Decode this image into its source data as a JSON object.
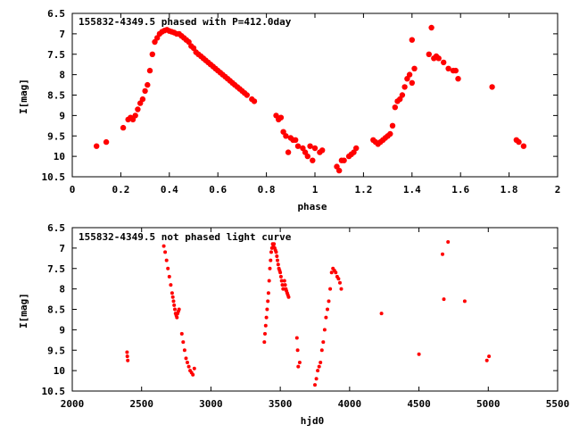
{
  "chart_data": [
    {
      "type": "scatter",
      "title": "155832-4349.5 phased with P=412.0day",
      "xlabel": "phase",
      "ylabel": "I[mag]",
      "xlim": [
        0,
        2
      ],
      "ylim": [
        10.5,
        6.5
      ],
      "y_inverted": true,
      "grid": false,
      "xticks": [
        "0",
        "0.2",
        "0.4",
        "0.6",
        "0.8",
        "1",
        "1.2",
        "1.4",
        "1.6",
        "1.8",
        "2"
      ],
      "yticks": [
        "6.5",
        "7",
        "7.5",
        "8",
        "8.5",
        "9",
        "9.5",
        "10",
        "10.5"
      ],
      "series": [
        {
          "color": "#ff0000",
          "marker": "filled-circle",
          "x": [
            0.1,
            0.14,
            0.21,
            0.23,
            0.24,
            0.25,
            0.26,
            0.27,
            0.28,
            0.29,
            0.3,
            0.31,
            0.32,
            0.33,
            0.34,
            0.35,
            0.36,
            0.37,
            0.38,
            0.39,
            0.4,
            0.41,
            0.42,
            0.43,
            0.44,
            0.45,
            0.46,
            0.47,
            0.48,
            0.49,
            0.5,
            0.51,
            0.52,
            0.53,
            0.54,
            0.55,
            0.56,
            0.57,
            0.58,
            0.59,
            0.6,
            0.61,
            0.62,
            0.63,
            0.64,
            0.65,
            0.66,
            0.67,
            0.68,
            0.69,
            0.7,
            0.71,
            0.72,
            0.74,
            0.75,
            0.84,
            0.85,
            0.86,
            0.87,
            0.88,
            0.89,
            0.9,
            0.91,
            0.92,
            0.93,
            0.95,
            0.96,
            0.97,
            0.98,
            0.99,
            1.0,
            1.02,
            1.03,
            1.09,
            1.1,
            1.11,
            1.12,
            1.14,
            1.15,
            1.16,
            1.17,
            1.24,
            1.25,
            1.26,
            1.27,
            1.28,
            1.29,
            1.3,
            1.31,
            1.32,
            1.33,
            1.34,
            1.35,
            1.36,
            1.37,
            1.38,
            1.39,
            1.4,
            1.4,
            1.41,
            1.47,
            1.48,
            1.49,
            1.5,
            1.51,
            1.53,
            1.55,
            1.57,
            1.58,
            1.59,
            1.73,
            1.83,
            1.84,
            1.86
          ],
          "y": [
            9.75,
            9.65,
            9.3,
            9.1,
            9.05,
            9.1,
            9.0,
            8.85,
            8.7,
            8.6,
            8.4,
            8.25,
            7.9,
            7.5,
            7.2,
            7.1,
            7.0,
            6.95,
            6.92,
            6.9,
            6.93,
            6.95,
            6.97,
            7.0,
            7.0,
            7.05,
            7.1,
            7.15,
            7.2,
            7.3,
            7.35,
            7.45,
            7.5,
            7.55,
            7.6,
            7.65,
            7.7,
            7.75,
            7.8,
            7.85,
            7.9,
            7.95,
            8.0,
            8.05,
            8.1,
            8.15,
            8.2,
            8.25,
            8.3,
            8.35,
            8.4,
            8.45,
            8.5,
            8.6,
            8.65,
            9.0,
            9.1,
            9.05,
            9.4,
            9.5,
            9.9,
            9.55,
            9.6,
            9.6,
            9.75,
            9.8,
            9.9,
            10.0,
            9.75,
            10.1,
            9.8,
            9.9,
            9.85,
            10.25,
            10.35,
            10.1,
            10.1,
            10.0,
            9.95,
            9.9,
            9.8,
            9.6,
            9.65,
            9.7,
            9.65,
            9.6,
            9.55,
            9.5,
            9.45,
            9.25,
            8.8,
            8.65,
            8.6,
            8.5,
            8.3,
            8.1,
            8.0,
            7.15,
            8.2,
            7.85,
            7.5,
            6.85,
            7.6,
            7.55,
            7.6,
            7.7,
            7.85,
            7.9,
            7.9,
            8.1,
            8.3,
            9.6,
            9.65,
            9.75
          ]
        }
      ]
    },
    {
      "type": "scatter",
      "title": "155832-4349.5 not phased light curve",
      "xlabel": "hjd0",
      "ylabel": "I[mag]",
      "xlim": [
        2000,
        5500
      ],
      "ylim": [
        10.5,
        6.5
      ],
      "y_inverted": true,
      "grid": false,
      "xticks": [
        "2000",
        "2500",
        "3000",
        "3500",
        "4000",
        "4500",
        "5000",
        "5500"
      ],
      "yticks": [
        "6.5",
        "7",
        "7.5",
        "8",
        "8.5",
        "9",
        "9.5",
        "10",
        "10.5"
      ],
      "series": [
        {
          "color": "#ff0000",
          "marker": "small-filled-circle",
          "x": [
            2395,
            2397,
            2400,
            2660,
            2670,
            2680,
            2690,
            2700,
            2710,
            2720,
            2725,
            2730,
            2735,
            2740,
            2745,
            2750,
            2755,
            2760,
            2765,
            2770,
            2790,
            2800,
            2810,
            2820,
            2830,
            2840,
            2850,
            2860,
            2870,
            2880,
            3385,
            3390,
            3395,
            3400,
            3405,
            3410,
            3415,
            3420,
            3425,
            3430,
            3435,
            3440,
            3445,
            3450,
            3455,
            3460,
            3465,
            3470,
            3475,
            3480,
            3485,
            3490,
            3495,
            3500,
            3505,
            3510,
            3515,
            3520,
            3525,
            3530,
            3535,
            3540,
            3545,
            3550,
            3555,
            3560,
            3620,
            3625,
            3630,
            3640,
            3750,
            3760,
            3770,
            3780,
            3790,
            3800,
            3810,
            3820,
            3830,
            3840,
            3850,
            3860,
            3870,
            3880,
            3890,
            3900,
            3910,
            3920,
            3930,
            3940,
            4230,
            4500,
            4670,
            4680,
            4710,
            4830,
            4990,
            5005
          ],
          "y": [
            9.55,
            9.65,
            9.75,
            6.95,
            7.1,
            7.3,
            7.5,
            7.7,
            7.9,
            8.1,
            8.2,
            8.3,
            8.4,
            8.5,
            8.6,
            8.65,
            8.7,
            8.6,
            8.55,
            8.5,
            9.1,
            9.3,
            9.5,
            9.7,
            9.8,
            9.9,
            10.0,
            10.05,
            10.1,
            9.95,
            9.3,
            9.1,
            8.9,
            8.7,
            8.5,
            8.3,
            8.1,
            7.8,
            7.5,
            7.3,
            7.1,
            7.0,
            6.9,
            6.95,
            6.9,
            7.0,
            7.05,
            7.1,
            7.2,
            7.3,
            7.4,
            7.5,
            7.55,
            7.6,
            7.7,
            7.8,
            7.9,
            8.0,
            8.0,
            7.8,
            7.9,
            8.0,
            8.05,
            8.1,
            8.15,
            8.2,
            9.2,
            9.5,
            9.9,
            9.8,
            10.35,
            10.2,
            10.0,
            9.9,
            9.8,
            9.5,
            9.3,
            9.0,
            8.7,
            8.5,
            8.3,
            8.0,
            7.6,
            7.5,
            7.55,
            7.6,
            7.7,
            7.75,
            7.85,
            8.0,
            8.6,
            9.6,
            7.15,
            8.25,
            6.85,
            8.3,
            9.75,
            9.65
          ]
        }
      ]
    }
  ]
}
